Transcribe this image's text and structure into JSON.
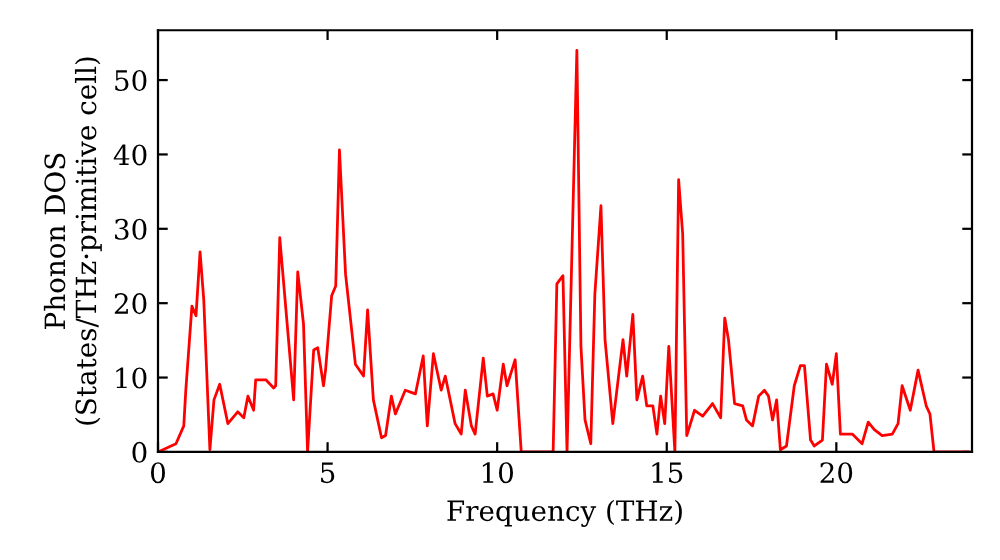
{
  "chart_data": {
    "type": "line",
    "xlabel": "Frequency (THz)",
    "ylabel": "Phonon DOS\n(States/THz·primitive cell)",
    "xlim": [
      0,
      24
    ],
    "ylim": [
      0,
      56.7
    ],
    "xticks": [
      0,
      5,
      10,
      15,
      20
    ],
    "yticks": [
      0,
      10,
      20,
      30,
      40,
      50
    ],
    "grid": false,
    "legend": false,
    "marker": "none",
    "line_style": "solid",
    "series": [
      {
        "color": "#ff0000",
        "x": [
          0,
          0.53,
          0.76,
          0.82,
          1.0,
          1.12,
          1.24,
          1.35,
          1.53,
          1.65,
          1.82,
          2.06,
          2.35,
          2.53,
          2.65,
          2.82,
          2.88,
          3.18,
          3.41,
          3.47,
          3.59,
          4.0,
          4.12,
          4.29,
          4.41,
          4.59,
          4.71,
          4.88,
          4.94,
          5.12,
          5.24,
          5.35,
          5.53,
          5.82,
          6.06,
          6.18,
          6.35,
          6.59,
          6.71,
          6.88,
          7.0,
          7.29,
          7.59,
          7.82,
          7.94,
          8.12,
          8.35,
          8.47,
          8.76,
          8.94,
          9.06,
          9.24,
          9.35,
          9.59,
          9.71,
          9.88,
          10.0,
          10.18,
          10.29,
          10.53,
          10.71,
          11.65,
          11.76,
          11.94,
          12.06,
          12.35,
          12.47,
          12.59,
          12.76,
          12.88,
          13.06,
          13.18,
          13.41,
          13.71,
          13.82,
          14.0,
          14.12,
          14.29,
          14.41,
          14.59,
          14.71,
          14.82,
          14.94,
          15.06,
          15.24,
          15.35,
          15.47,
          15.59,
          15.82,
          16.06,
          16.35,
          16.59,
          16.71,
          16.82,
          17.0,
          17.24,
          17.35,
          17.53,
          17.71,
          17.88,
          18.0,
          18.12,
          18.24,
          18.35,
          18.53,
          18.76,
          18.94,
          19.06,
          19.24,
          19.35,
          19.59,
          19.71,
          19.88,
          20.0,
          20.12,
          20.47,
          20.76,
          20.94,
          21.12,
          21.35,
          21.65,
          21.82,
          21.94,
          22.18,
          22.41,
          22.65,
          22.76,
          22.88,
          23.88
        ],
        "values": [
          0,
          1.1,
          3.5,
          8.3,
          19.6,
          18.3,
          26.9,
          20.4,
          0.3,
          7.0,
          9.1,
          3.8,
          5.4,
          4.6,
          7.5,
          5.6,
          9.7,
          9.7,
          8.6,
          8.9,
          28.8,
          7.0,
          24.2,
          17.2,
          0,
          13.7,
          14.0,
          8.9,
          11.0,
          21.0,
          22.3,
          40.6,
          23.9,
          11.8,
          10.2,
          19.1,
          7.0,
          1.9,
          2.2,
          7.5,
          5.1,
          8.3,
          7.8,
          12.9,
          3.5,
          13.2,
          8.3,
          10.2,
          3.8,
          2.4,
          8.3,
          3.5,
          2.4,
          12.6,
          7.5,
          7.8,
          5.6,
          11.8,
          8.9,
          12.4,
          0,
          0,
          22.6,
          23.7,
          0,
          54.0,
          14.2,
          4.3,
          1.1,
          21.2,
          33.1,
          15.1,
          3.8,
          15.1,
          10.2,
          18.5,
          7.0,
          10.2,
          6.2,
          6.2,
          2.4,
          7.5,
          3.8,
          14.2,
          0,
          36.6,
          29.3,
          2.2,
          5.6,
          4.8,
          6.5,
          4.6,
          18.0,
          15.1,
          6.5,
          6.2,
          4.3,
          3.5,
          7.5,
          8.3,
          7.5,
          4.3,
          7.0,
          0.3,
          0.8,
          8.9,
          11.6,
          11.6,
          1.6,
          0.8,
          1.6,
          11.8,
          9.1,
          13.2,
          2.4,
          2.4,
          1.1,
          4.0,
          3.0,
          2.2,
          2.4,
          3.8,
          8.9,
          5.6,
          11.0,
          6.2,
          5.1,
          0,
          0
        ]
      }
    ]
  }
}
